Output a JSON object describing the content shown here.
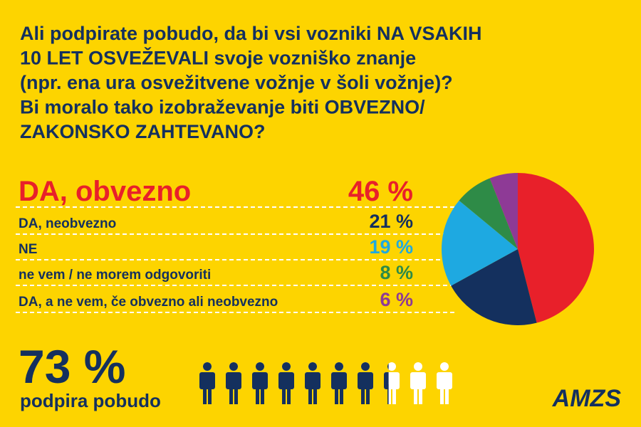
{
  "chart_data": {
    "type": "pie",
    "title": [
      "Ali podpirate pobudo, da bi vsi vozniki NA VSAKIH",
      "10 LET OSVEŽEVALI svoje vozniško znanje",
      "(npr. ena ura osvežitvene vožnje v šoli vožnje)?",
      "Bi moralo tako izobraževanje biti OBVEZNO/",
      "ZAKONSKO ZAHTEVANO?"
    ],
    "categories": [
      "DA, obvezno",
      "DA, neobvezno",
      "NE",
      "ne vem / ne morem odgovoriti",
      "DA, a ne vem, če obvezno ali neobvezno"
    ],
    "values": [
      46,
      21,
      19,
      8,
      6
    ],
    "value_labels": [
      "46 %",
      "21 %",
      "19 %",
      "8 %",
      "6 %"
    ],
    "colors": [
      "#e8202a",
      "#14305e",
      "#1ea9e1",
      "#2e8b47",
      "#8e3a96"
    ],
    "summary": {
      "value": 73,
      "value_label": "73 %",
      "label": "podpira pobudo"
    },
    "brand": "AMZS"
  }
}
